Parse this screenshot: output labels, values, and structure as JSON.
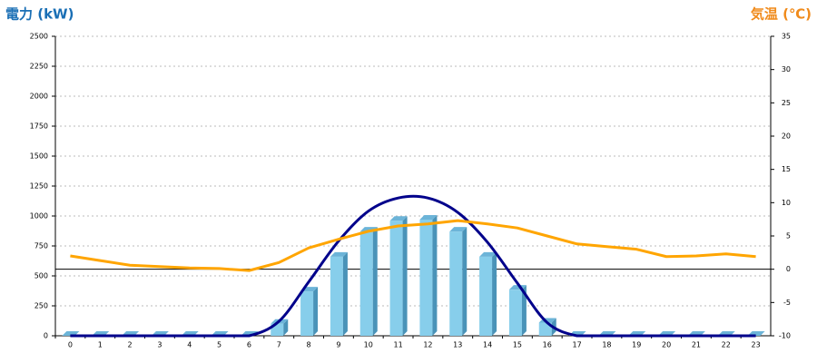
{
  "chart_data": {
    "type": "bar-line",
    "y_title": "電力 (kW)",
    "y2_title": "気温 (℃)",
    "categories": [
      "0",
      "1",
      "2",
      "3",
      "4",
      "5",
      "6",
      "7",
      "8",
      "9",
      "10",
      "11",
      "12",
      "13",
      "14",
      "15",
      "16",
      "17",
      "18",
      "19",
      "20",
      "21",
      "22",
      "23"
    ],
    "ylim": [
      0,
      2500
    ],
    "yticks": [
      0,
      250,
      500,
      750,
      1000,
      1250,
      1500,
      1750,
      2000,
      2250,
      2500
    ],
    "y2lim": [
      -10,
      35
    ],
    "y2ticks": [
      -10,
      -5,
      0,
      5,
      10,
      15,
      20,
      25,
      30,
      35
    ],
    "grid": true,
    "series": [
      {
        "type": "bar",
        "color": "#87ceeb",
        "values": [
          0,
          0,
          0,
          0,
          0,
          0,
          0,
          100,
          370,
          660,
          870,
          960,
          970,
          870,
          660,
          385,
          110,
          0,
          0,
          0,
          0,
          0,
          0,
          0
        ]
      },
      {
        "type": "curve",
        "color": "#00008b",
        "values": [
          0,
          0,
          0,
          0,
          0,
          0,
          0,
          120,
          450,
          790,
          1040,
          1150,
          1150,
          1030,
          780,
          440,
          110,
          0,
          0,
          0,
          0,
          0,
          0,
          0
        ]
      },
      {
        "type": "line",
        "axis": "y2",
        "color": "#ffa500",
        "values": [
          2,
          1.3,
          0.6,
          0.4,
          0.2,
          0.1,
          -0.2,
          1,
          3.2,
          4.5,
          5.7,
          6.5,
          6.8,
          7.3,
          6.8,
          6.2,
          5,
          3.8,
          3.4,
          3,
          1.9,
          2,
          2.3,
          1.9
        ]
      }
    ]
  }
}
